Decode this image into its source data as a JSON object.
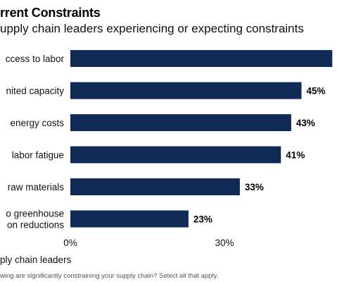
{
  "header": {
    "title": "rrent Constraints",
    "subtitle": "upply chain leaders experiencing or expecting constraints"
  },
  "footnote": "wing are significantly constraining your supply chain? Select all that apply.",
  "chart_data": {
    "type": "bar",
    "orientation": "horizontal",
    "title": "rrent Constraints",
    "subtitle": "upply chain leaders experiencing or expecting constraints",
    "xlabel": "ply chain leaders",
    "ylabel": "",
    "xlim": [
      0,
      51
    ],
    "categories": [
      [
        "ccess to labor"
      ],
      [
        "nited capacity"
      ],
      [
        "energy costs"
      ],
      [
        "labor fatigue"
      ],
      [
        "raw materials"
      ],
      [
        "o greenhouse",
        "on reductions"
      ]
    ],
    "values": [
      51,
      45,
      43,
      41,
      33,
      23
    ],
    "value_labels": [
      "",
      "45%",
      "43%",
      "41%",
      "33%",
      "23%"
    ],
    "x_ticks": [
      0,
      30
    ],
    "x_tick_labels": [
      "0%",
      "30%"
    ],
    "grid": false,
    "legend": "none",
    "bar_color": "#0f2a55"
  }
}
